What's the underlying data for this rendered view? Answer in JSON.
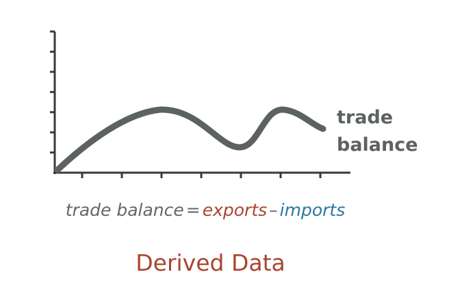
{
  "series_label": {
    "line1": "trade",
    "line2": "balance"
  },
  "formula": {
    "lhs": "trade balance",
    "equals": "=",
    "term1": "exports",
    "minus": "–",
    "term2": "imports"
  },
  "caption": "Derived Data",
  "colors": {
    "axis": "#3a3a3a",
    "curve": "#5c6260",
    "exports": "#a8452f",
    "imports": "#2a77a1",
    "caption": "#a8452f"
  },
  "chart_data": {
    "type": "line",
    "y_ticks": 7,
    "x_ticks": 7,
    "series": [
      {
        "name": "trade balance",
        "values": [
          0,
          2.9,
          3.2,
          1.25,
          3.1,
          2.2
        ]
      }
    ]
  }
}
